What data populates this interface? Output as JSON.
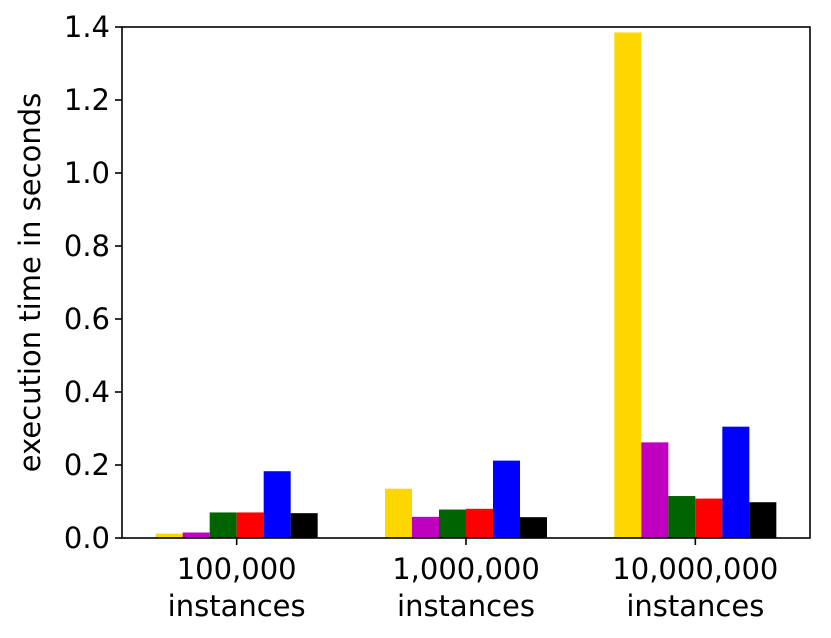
{
  "chart_data": {
    "type": "bar",
    "title": "",
    "xlabel": "",
    "ylabel": "execution time in seconds",
    "ylim": [
      0,
      1.4
    ],
    "yticks": [
      0.0,
      0.2,
      0.4,
      0.6,
      0.8,
      1.0,
      1.2,
      1.4
    ],
    "ytick_labels": [
      "0.0",
      "0.2",
      "0.4",
      "0.6",
      "0.8",
      "1.0",
      "1.2",
      "1.4"
    ],
    "categories": [
      [
        "100,000",
        "instances"
      ],
      [
        "1,000,000",
        "instances"
      ],
      [
        "10,000,000",
        "instances"
      ]
    ],
    "grid": false,
    "legend": "none",
    "series": [
      {
        "color": "#FFD700",
        "values": [
          0.012,
          0.135,
          1.385
        ]
      },
      {
        "color": "#BF00BF",
        "values": [
          0.015,
          0.058,
          0.262
        ]
      },
      {
        "color": "#006400",
        "values": [
          0.07,
          0.078,
          0.115
        ]
      },
      {
        "color": "#FF0000",
        "values": [
          0.07,
          0.08,
          0.108
        ]
      },
      {
        "color": "#0000FF",
        "values": [
          0.183,
          0.212,
          0.305
        ]
      },
      {
        "color": "#000000",
        "values": [
          0.068,
          0.057,
          0.098
        ]
      }
    ]
  }
}
